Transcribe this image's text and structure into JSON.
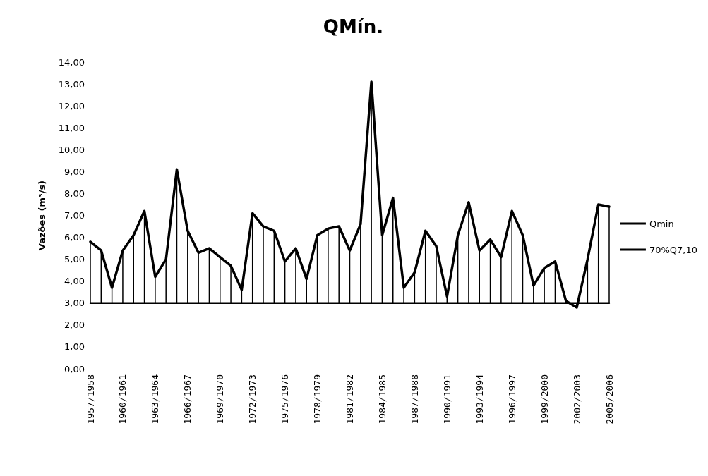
{
  "chart_data": {
    "type": "line",
    "title": "QMín.",
    "ylabel": "Vazões (m³/s)",
    "categories": [
      "1957/1958",
      null,
      null,
      "1960/1961",
      null,
      null,
      "1963/1964",
      null,
      null,
      "1966/1967",
      null,
      null,
      "1969/1970",
      null,
      null,
      "1972/1973",
      null,
      null,
      "1975/1976",
      null,
      null,
      "1978/1979",
      null,
      null,
      "1981/1982",
      null,
      null,
      "1984/1985",
      null,
      null,
      "1987/1988",
      null,
      null,
      "1990/1991",
      null,
      null,
      "1993/1994",
      null,
      null,
      "1996/1997",
      null,
      null,
      "1999/2000",
      null,
      null,
      "2002/2003",
      null,
      null,
      "2005/2006"
    ],
    "series": [
      {
        "name": "Qmin",
        "color": "#000000",
        "values": [
          5.8,
          5.4,
          3.7,
          5.4,
          6.1,
          7.2,
          4.2,
          5.0,
          9.1,
          6.3,
          5.3,
          5.5,
          5.1,
          4.7,
          3.6,
          7.1,
          6.5,
          6.3,
          4.9,
          5.5,
          4.1,
          6.1,
          6.4,
          6.5,
          5.4,
          6.6,
          13.1,
          6.1,
          7.8,
          3.7,
          4.4,
          6.3,
          5.6,
          3.3,
          6.1,
          7.6,
          5.4,
          5.9,
          5.1,
          7.2,
          6.1,
          3.8,
          4.6,
          4.9,
          3.1,
          2.8,
          5.0,
          7.5,
          7.4
        ],
        "errors": [
          [
            3.0,
            5.8
          ],
          [
            3.0,
            5.4
          ],
          [
            3.0,
            3.7
          ],
          [
            3.0,
            5.4
          ],
          [
            3.0,
            6.1
          ],
          [
            3.0,
            7.2
          ],
          [
            3.0,
            4.2
          ],
          [
            3.0,
            5.0
          ],
          [
            3.0,
            9.1
          ],
          [
            3.0,
            6.3
          ],
          [
            3.0,
            5.3
          ],
          [
            3.0,
            5.5
          ],
          [
            3.0,
            5.1
          ],
          [
            3.0,
            4.7
          ],
          [
            3.0,
            3.6
          ],
          [
            3.0,
            7.1
          ],
          [
            3.0,
            6.5
          ],
          [
            3.0,
            6.3
          ],
          [
            3.0,
            4.9
          ],
          [
            3.0,
            5.5
          ],
          [
            3.0,
            4.1
          ],
          [
            3.0,
            6.1
          ],
          [
            3.0,
            6.4
          ],
          [
            3.0,
            6.5
          ],
          [
            3.0,
            5.4
          ],
          [
            3.0,
            6.6
          ],
          [
            3.0,
            13.1
          ],
          [
            3.0,
            6.1
          ],
          [
            3.0,
            7.8
          ],
          [
            3.0,
            3.7
          ],
          [
            3.0,
            4.4
          ],
          [
            3.0,
            6.3
          ],
          [
            3.0,
            5.6
          ],
          [
            3.0,
            3.3
          ],
          [
            3.0,
            6.1
          ],
          [
            3.0,
            7.6
          ],
          [
            3.0,
            5.4
          ],
          [
            3.0,
            5.9
          ],
          [
            3.0,
            5.1
          ],
          [
            3.0,
            7.2
          ],
          [
            3.0,
            6.1
          ],
          [
            3.0,
            3.8
          ],
          [
            3.0,
            4.6
          ],
          [
            3.0,
            4.9
          ],
          [
            3.0,
            3.1
          ],
          [
            2.8,
            3.0
          ],
          [
            3.0,
            5.0
          ],
          [
            3.0,
            7.5
          ],
          [
            3.0,
            7.4
          ]
        ]
      },
      {
        "name": "70%Q7,10",
        "color": "#000000",
        "values": [
          3.0,
          3.0,
          3.0,
          3.0,
          3.0,
          3.0,
          3.0,
          3.0,
          3.0,
          3.0,
          3.0,
          3.0,
          3.0,
          3.0,
          3.0,
          3.0,
          3.0,
          3.0,
          3.0,
          3.0,
          3.0,
          3.0,
          3.0,
          3.0,
          3.0,
          3.0,
          3.0,
          3.0,
          3.0,
          3.0,
          3.0,
          3.0,
          3.0,
          3.0,
          3.0,
          3.0,
          3.0,
          3.0,
          3.0,
          3.0,
          3.0,
          3.0,
          3.0,
          3.0,
          3.0,
          3.0,
          3.0,
          3.0,
          3.0
        ]
      }
    ],
    "ylim": [
      0,
      14
    ],
    "yticks": [
      {
        "value": 0,
        "label": "0,00"
      },
      {
        "value": 1,
        "label": "1,00"
      },
      {
        "value": 2,
        "label": "2,00"
      },
      {
        "value": 3,
        "label": "3,00"
      },
      {
        "value": 4,
        "label": "4,00"
      },
      {
        "value": 5,
        "label": "5,00"
      },
      {
        "value": 6,
        "label": "6,00"
      },
      {
        "value": 7,
        "label": "7,00"
      },
      {
        "value": 8,
        "label": "8,00"
      },
      {
        "value": 9,
        "label": "9,00"
      },
      {
        "value": 10,
        "label": "10,00"
      },
      {
        "value": 11,
        "label": "11,00"
      },
      {
        "value": 12,
        "label": "12,00"
      },
      {
        "value": 13,
        "label": "13,00"
      },
      {
        "value": 14,
        "label": "14,00"
      }
    ],
    "grid": false,
    "legend": "right",
    "marker": "none",
    "line_style": "solid"
  }
}
